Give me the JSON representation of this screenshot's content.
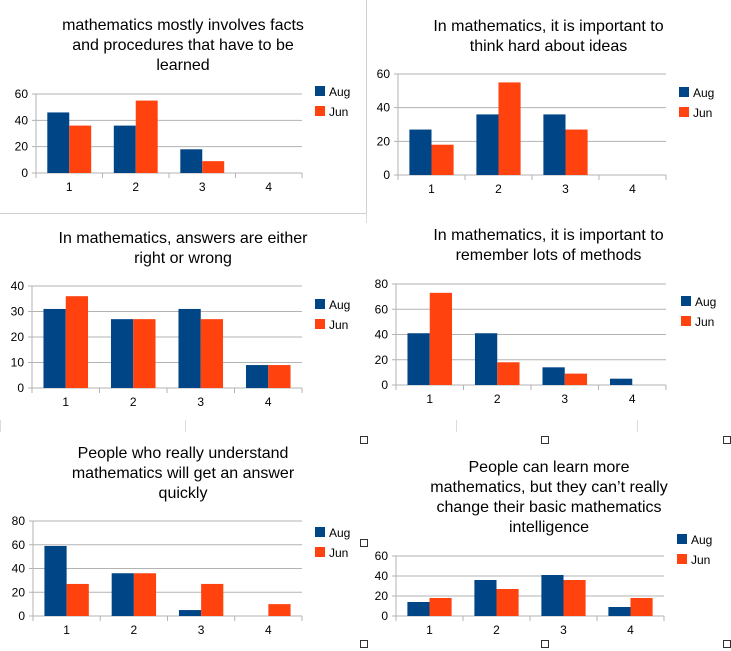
{
  "colors": {
    "Aug": "#004586",
    "Jun": "#ff420e",
    "grid": "#b3b3b3",
    "axis": "#b3b3b3"
  },
  "chart_data": [
    {
      "type": "bar",
      "title": "mathematics mostly involves facts and procedures that have to be learned",
      "title_lines": [
        "mathematics mostly involves facts",
        "and procedures that have to be",
        "learned"
      ],
      "categories": [
        "1",
        "2",
        "3",
        "4"
      ],
      "series": [
        {
          "name": "Aug",
          "values": [
            46,
            36,
            18,
            0
          ]
        },
        {
          "name": "Jun",
          "values": [
            36,
            55,
            9,
            0
          ]
        }
      ],
      "yticks": [
        0,
        20,
        40,
        60
      ],
      "ylim": [
        0,
        60
      ],
      "xlabel": "",
      "ylabel": "",
      "legend": "right"
    },
    {
      "type": "bar",
      "title": "In mathematics, it is important to think hard about ideas",
      "title_lines": [
        "In mathematics, it is important to",
        "think hard about ideas"
      ],
      "categories": [
        "1",
        "2",
        "3",
        "4"
      ],
      "series": [
        {
          "name": "Aug",
          "values": [
            27,
            36,
            36,
            0
          ]
        },
        {
          "name": "Jun",
          "values": [
            18,
            55,
            27,
            0
          ]
        }
      ],
      "yticks": [
        0,
        20,
        40,
        60
      ],
      "ylim": [
        0,
        60
      ],
      "xlabel": "",
      "ylabel": "",
      "legend": "right"
    },
    {
      "type": "bar",
      "title": "In mathematics, answers are either right or wrong",
      "title_lines": [
        "In mathematics, answers are either",
        "right or wrong"
      ],
      "categories": [
        "1",
        "2",
        "3",
        "4"
      ],
      "series": [
        {
          "name": "Aug",
          "values": [
            31,
            27,
            31,
            9
          ]
        },
        {
          "name": "Jun",
          "values": [
            36,
            27,
            27,
            9
          ]
        }
      ],
      "yticks": [
        0,
        10,
        20,
        30,
        40
      ],
      "ylim": [
        0,
        40
      ],
      "xlabel": "",
      "ylabel": "",
      "legend": "right"
    },
    {
      "type": "bar",
      "title": "In mathematics, it is important to remember lots of methods",
      "title_lines": [
        "In mathematics, it is important to",
        "remember lots of methods"
      ],
      "categories": [
        "1",
        "2",
        "3",
        "4"
      ],
      "series": [
        {
          "name": "Aug",
          "values": [
            41,
            41,
            14,
            5
          ]
        },
        {
          "name": "Jun",
          "values": [
            73,
            18,
            9,
            0
          ]
        }
      ],
      "yticks": [
        0,
        20,
        40,
        60,
        80
      ],
      "ylim": [
        0,
        80
      ],
      "xlabel": "",
      "ylabel": "",
      "legend": "right"
    },
    {
      "type": "bar",
      "title": "People who really understand mathematics will get an answer quickly",
      "title_lines": [
        "People who really understand",
        "mathematics will get an answer",
        "quickly"
      ],
      "categories": [
        "1",
        "2",
        "3",
        "4"
      ],
      "series": [
        {
          "name": "Aug",
          "values": [
            59,
            36,
            5,
            0
          ]
        },
        {
          "name": "Jun",
          "values": [
            27,
            36,
            27,
            10
          ]
        }
      ],
      "yticks": [
        0,
        20,
        40,
        60,
        80
      ],
      "ylim": [
        0,
        80
      ],
      "xlabel": "",
      "ylabel": "",
      "legend": "right"
    },
    {
      "type": "bar",
      "title": "People can learn more mathematics, but they can’t really change their basic mathematics intelligence",
      "title_lines": [
        "People can learn more",
        "mathematics, but they can’t really",
        "change their basic mathematics",
        "intelligence"
      ],
      "categories": [
        "1",
        "2",
        "3",
        "4"
      ],
      "series": [
        {
          "name": "Aug",
          "values": [
            14,
            36,
            41,
            9
          ]
        },
        {
          "name": "Jun",
          "values": [
            18,
            27,
            36,
            18
          ]
        }
      ],
      "yticks": [
        0,
        20,
        40,
        60
      ],
      "ylim": [
        0,
        60
      ],
      "xlabel": "",
      "ylabel": "",
      "legend": "right"
    }
  ]
}
